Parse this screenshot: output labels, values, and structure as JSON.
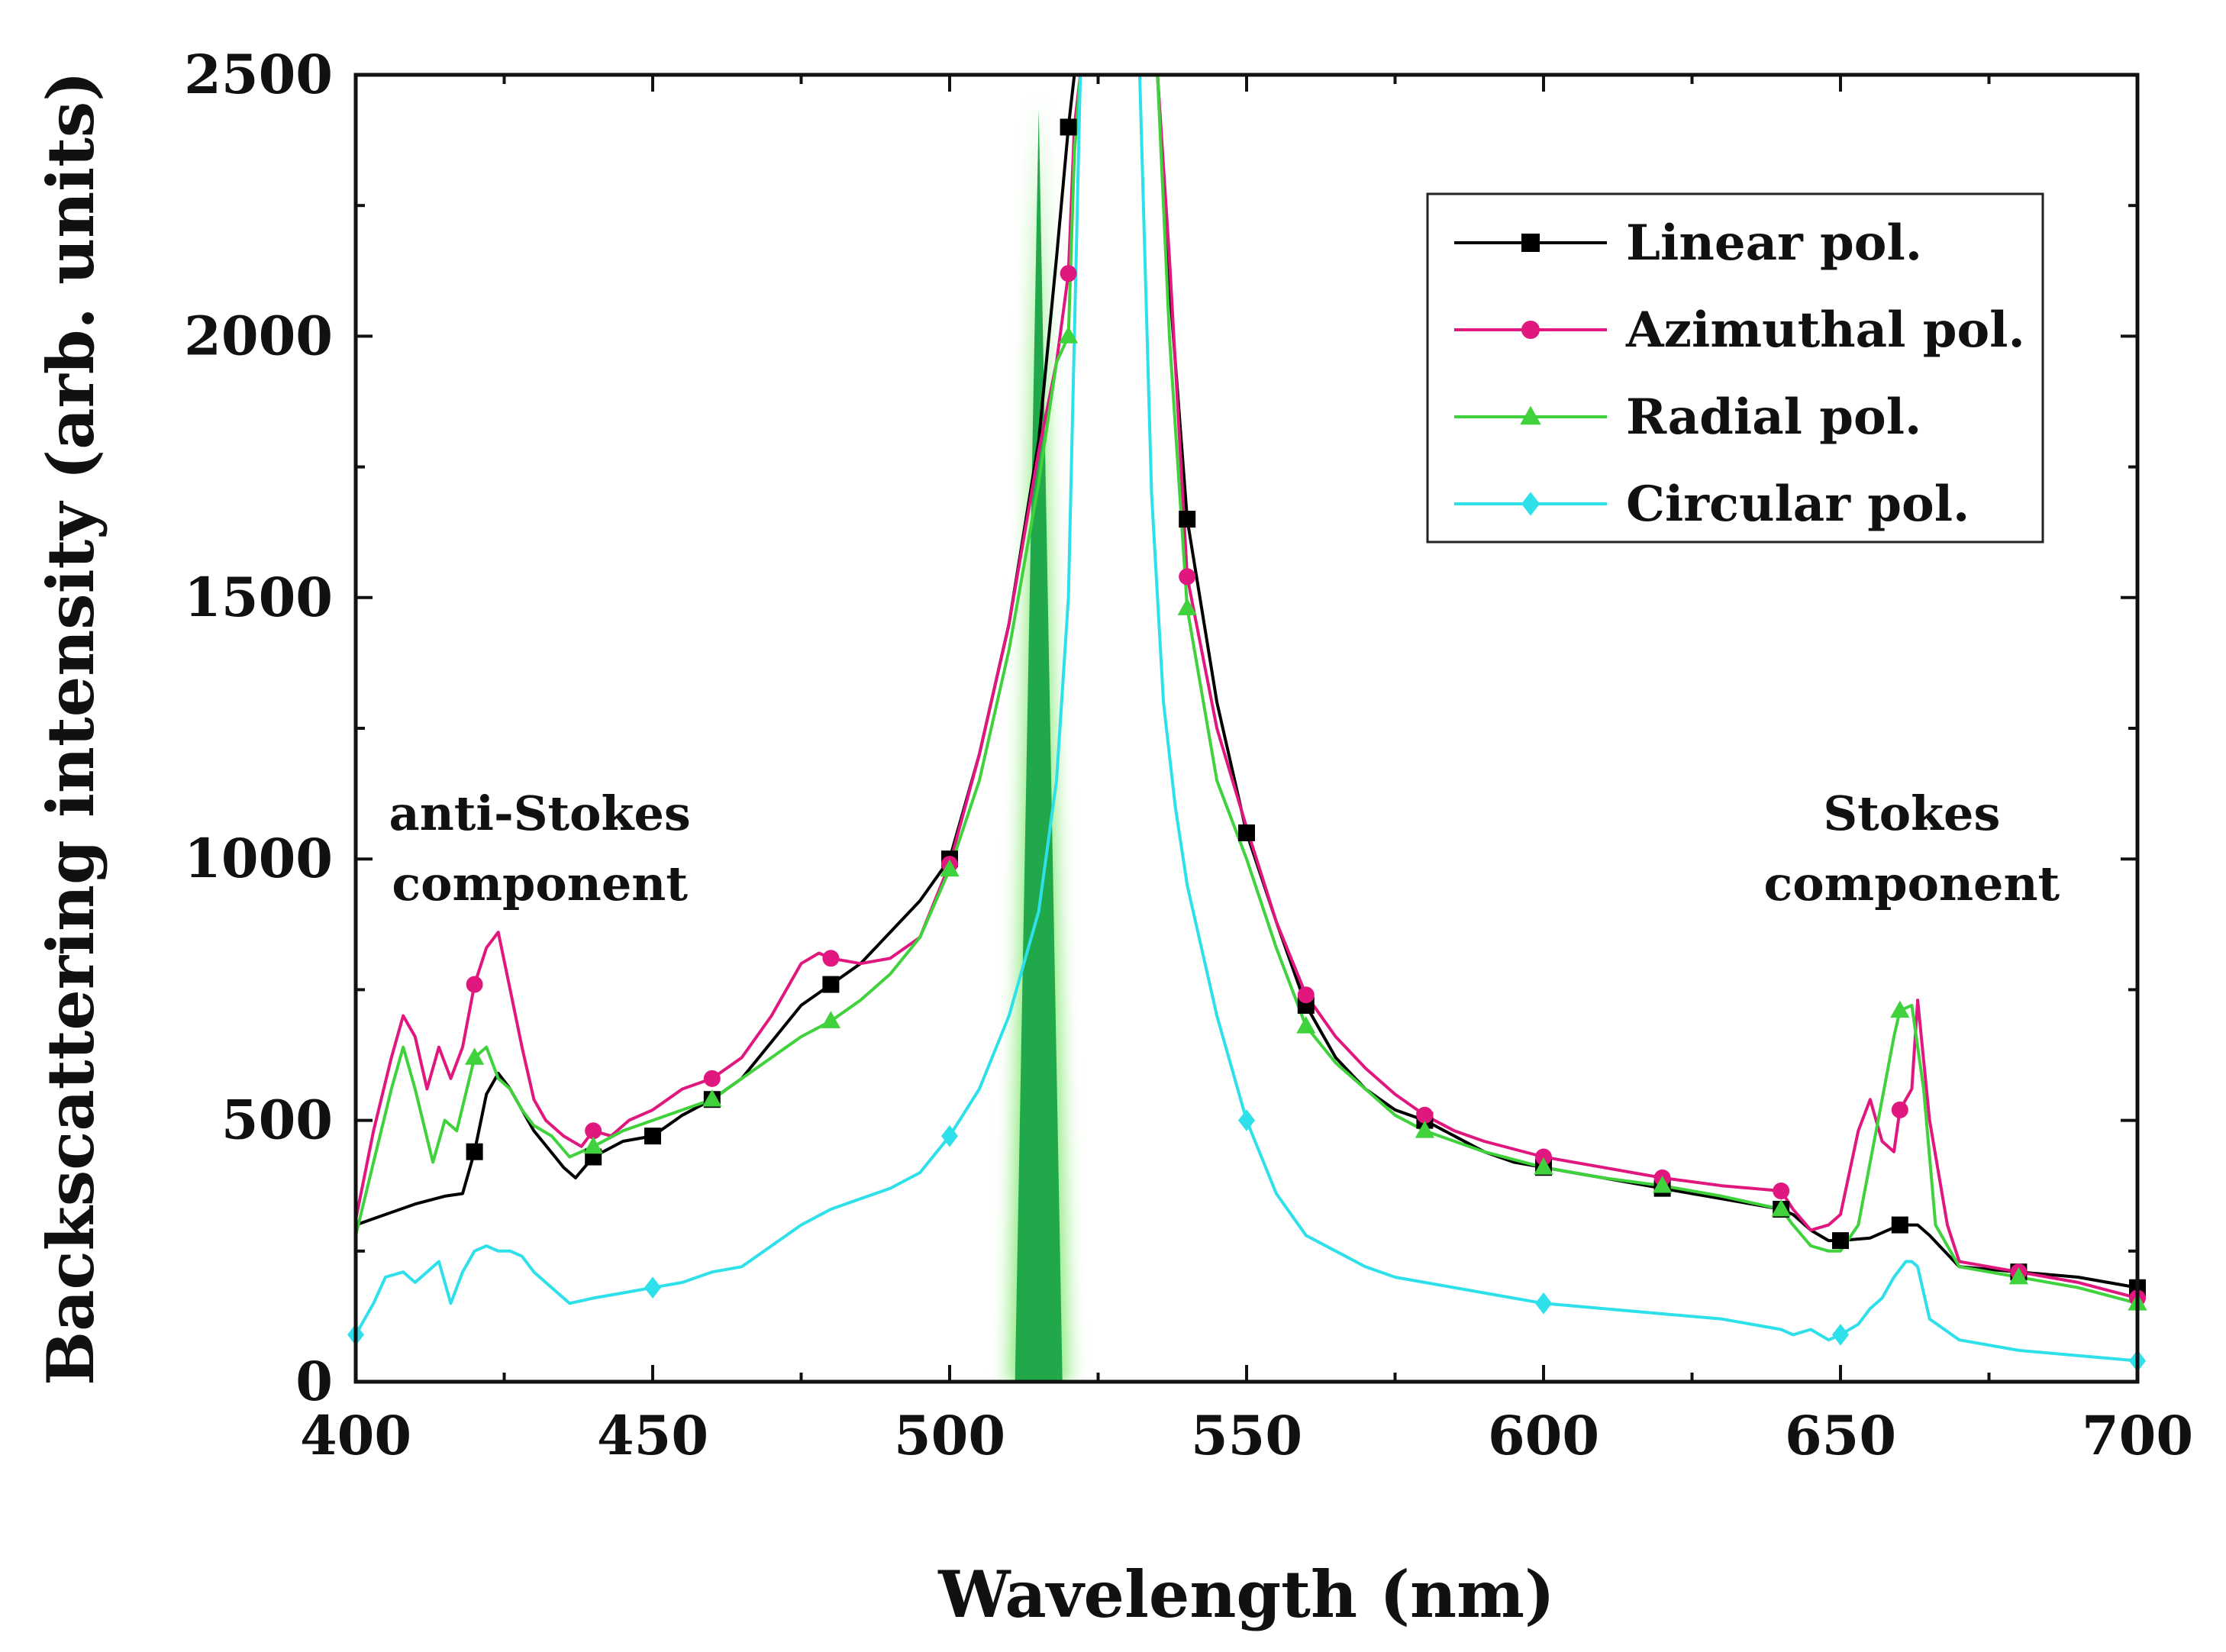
{
  "chart_data": {
    "type": "line",
    "title": "",
    "xlabel": "Wavelength (nm)",
    "ylabel": "Backscattering intensity (arb. units)",
    "xlim": [
      400,
      700
    ],
    "ylim": [
      0,
      2500
    ],
    "xticks": [
      400,
      450,
      500,
      550,
      600,
      650,
      700
    ],
    "yticks": [
      0,
      500,
      1000,
      1500,
      2000,
      2500
    ],
    "grid": false,
    "legend_position": "top-right",
    "excitation_band": {
      "from": 511,
      "to": 519,
      "peak": 515,
      "color": "#21a84a"
    },
    "annotations": [
      {
        "id": "anti-stokes",
        "lines": [
          "anti-Stokes",
          "component"
        ],
        "x": 431,
        "y": 1000
      },
      {
        "id": "stokes",
        "lines": [
          "Stokes",
          "component"
        ],
        "x": 662,
        "y": 1000
      }
    ],
    "series": [
      {
        "name": "Linear pol.",
        "color": "#000000",
        "marker": "square",
        "x": [
          400,
          405,
          410,
          415,
          418,
          420,
          422,
          424,
          426,
          430,
          435,
          437,
          440,
          445,
          450,
          455,
          460,
          465,
          470,
          475,
          480,
          485,
          490,
          495,
          500,
          505,
          510,
          515,
          518,
          520,
          521,
          522,
          525,
          530,
          533,
          535,
          537,
          540,
          545,
          550,
          555,
          560,
          565,
          570,
          575,
          580,
          585,
          590,
          595,
          600,
          605,
          610,
          615,
          620,
          625,
          630,
          635,
          640,
          642,
          645,
          648,
          650,
          655,
          660,
          663,
          665,
          670,
          680,
          690,
          700
        ],
        "y": [
          300,
          320,
          340,
          355,
          360,
          440,
          550,
          590,
          560,
          480,
          410,
          390,
          430,
          460,
          470,
          510,
          540,
          580,
          650,
          720,
          760,
          800,
          860,
          920,
          1000,
          1200,
          1450,
          1800,
          2150,
          2400,
          2500,
          2500,
          2500,
          2500,
          2500,
          2500,
          2100,
          1650,
          1300,
          1050,
          880,
          720,
          620,
          560,
          520,
          500,
          470,
          440,
          420,
          410,
          400,
          390,
          380,
          370,
          360,
          350,
          340,
          330,
          320,
          290,
          270,
          270,
          275,
          300,
          300,
          280,
          220,
          210,
          200,
          180
        ],
        "marker_x": [
          420,
          440,
          450,
          460,
          480,
          500,
          520,
          540,
          550,
          560,
          580,
          600,
          620,
          640,
          650,
          660,
          680,
          700
        ]
      },
      {
        "name": "Azimuthal pol.",
        "color": "#e0177f",
        "marker": "circle",
        "x": [
          400,
          403,
          406,
          408,
          410,
          412,
          414,
          416,
          418,
          420,
          422,
          424,
          426,
          428,
          430,
          432,
          435,
          438,
          440,
          443,
          446,
          450,
          455,
          460,
          465,
          470,
          475,
          478,
          480,
          485,
          490,
          495,
          500,
          505,
          510,
          515,
          518,
          520,
          521,
          522,
          525,
          530,
          533,
          535,
          537,
          540,
          545,
          550,
          555,
          560,
          565,
          570,
          575,
          580,
          585,
          590,
          600,
          610,
          620,
          630,
          640,
          642,
          645,
          648,
          650,
          653,
          655,
          657,
          659,
          660,
          662,
          663,
          665,
          668,
          670,
          680,
          690,
          700
        ],
        "y": [
          310,
          480,
          620,
          700,
          660,
          560,
          640,
          580,
          640,
          760,
          830,
          860,
          750,
          640,
          540,
          500,
          470,
          450,
          480,
          470,
          500,
          520,
          560,
          580,
          620,
          700,
          800,
          820,
          810,
          800,
          810,
          850,
          990,
          1200,
          1450,
          1780,
          1950,
          2120,
          2400,
          2500,
          2500,
          2500,
          2500,
          2500,
          2150,
          1540,
          1250,
          1060,
          880,
          740,
          660,
          600,
          550,
          510,
          480,
          460,
          430,
          410,
          390,
          375,
          365,
          330,
          290,
          300,
          320,
          480,
          540,
          460,
          440,
          520,
          560,
          730,
          500,
          300,
          230,
          210,
          190,
          160
        ],
        "marker_x": [
          420,
          440,
          460,
          480,
          500,
          520,
          540,
          560,
          580,
          600,
          620,
          640,
          660,
          680,
          700
        ]
      },
      {
        "name": "Radial pol.",
        "color": "#3fd23c",
        "marker": "triangle",
        "x": [
          400,
          403,
          406,
          408,
          410,
          413,
          415,
          417,
          420,
          422,
          424,
          426,
          428,
          430,
          433,
          436,
          440,
          445,
          450,
          455,
          460,
          465,
          470,
          475,
          480,
          485,
          490,
          495,
          500,
          505,
          510,
          515,
          518,
          520,
          521,
          522,
          525,
          530,
          533,
          535,
          537,
          540,
          545,
          550,
          555,
          560,
          565,
          570,
          575,
          580,
          585,
          590,
          600,
          610,
          620,
          630,
          640,
          642,
          645,
          648,
          650,
          653,
          655,
          657,
          659,
          660,
          662,
          664,
          666,
          670,
          680,
          690,
          700
        ],
        "y": [
          280,
          420,
          560,
          640,
          560,
          420,
          500,
          480,
          620,
          640,
          580,
          560,
          520,
          490,
          470,
          430,
          450,
          480,
          500,
          520,
          540,
          580,
          620,
          660,
          690,
          730,
          780,
          850,
          980,
          1150,
          1400,
          1720,
          1950,
          2000,
          2350,
          2500,
          2500,
          2500,
          2500,
          2500,
          2000,
          1480,
          1150,
          1000,
          830,
          680,
          610,
          560,
          510,
          480,
          460,
          440,
          410,
          390,
          375,
          355,
          330,
          300,
          260,
          250,
          250,
          300,
          420,
          540,
          660,
          710,
          720,
          560,
          300,
          220,
          200,
          180,
          150
        ],
        "marker_x": [
          420,
          440,
          460,
          480,
          500,
          520,
          540,
          560,
          580,
          600,
          620,
          640,
          660,
          680,
          700
        ]
      },
      {
        "name": "Circular pol.",
        "color": "#2ee0ea",
        "marker": "diamond",
        "x": [
          400,
          403,
          405,
          408,
          410,
          412,
          414,
          416,
          418,
          420,
          422,
          424,
          426,
          428,
          430,
          433,
          436,
          440,
          445,
          450,
          455,
          460,
          465,
          470,
          475,
          480,
          485,
          490,
          495,
          500,
          505,
          510,
          515,
          518,
          520,
          521,
          522,
          523,
          525,
          530,
          532,
          534,
          536,
          538,
          540,
          545,
          550,
          555,
          560,
          565,
          570,
          575,
          580,
          590,
          600,
          610,
          620,
          630,
          640,
          642,
          645,
          648,
          650,
          653,
          655,
          657,
          659,
          661,
          662,
          663,
          665,
          670,
          680,
          690,
          700
        ],
        "y": [
          90,
          150,
          200,
          210,
          190,
          210,
          230,
          150,
          210,
          250,
          260,
          250,
          250,
          240,
          210,
          180,
          150,
          160,
          170,
          180,
          190,
          210,
          220,
          260,
          300,
          330,
          350,
          370,
          400,
          470,
          560,
          700,
          900,
          1150,
          1500,
          2000,
          2500,
          2500,
          2500,
          2500,
          2500,
          1700,
          1300,
          1100,
          950,
          700,
          500,
          360,
          280,
          250,
          220,
          200,
          190,
          170,
          150,
          140,
          130,
          120,
          100,
          90,
          100,
          80,
          90,
          110,
          140,
          160,
          200,
          230,
          230,
          220,
          120,
          80,
          60,
          50,
          40
        ],
        "marker_x": [
          400,
          450,
          500,
          550,
          600,
          650,
          700
        ]
      }
    ]
  }
}
